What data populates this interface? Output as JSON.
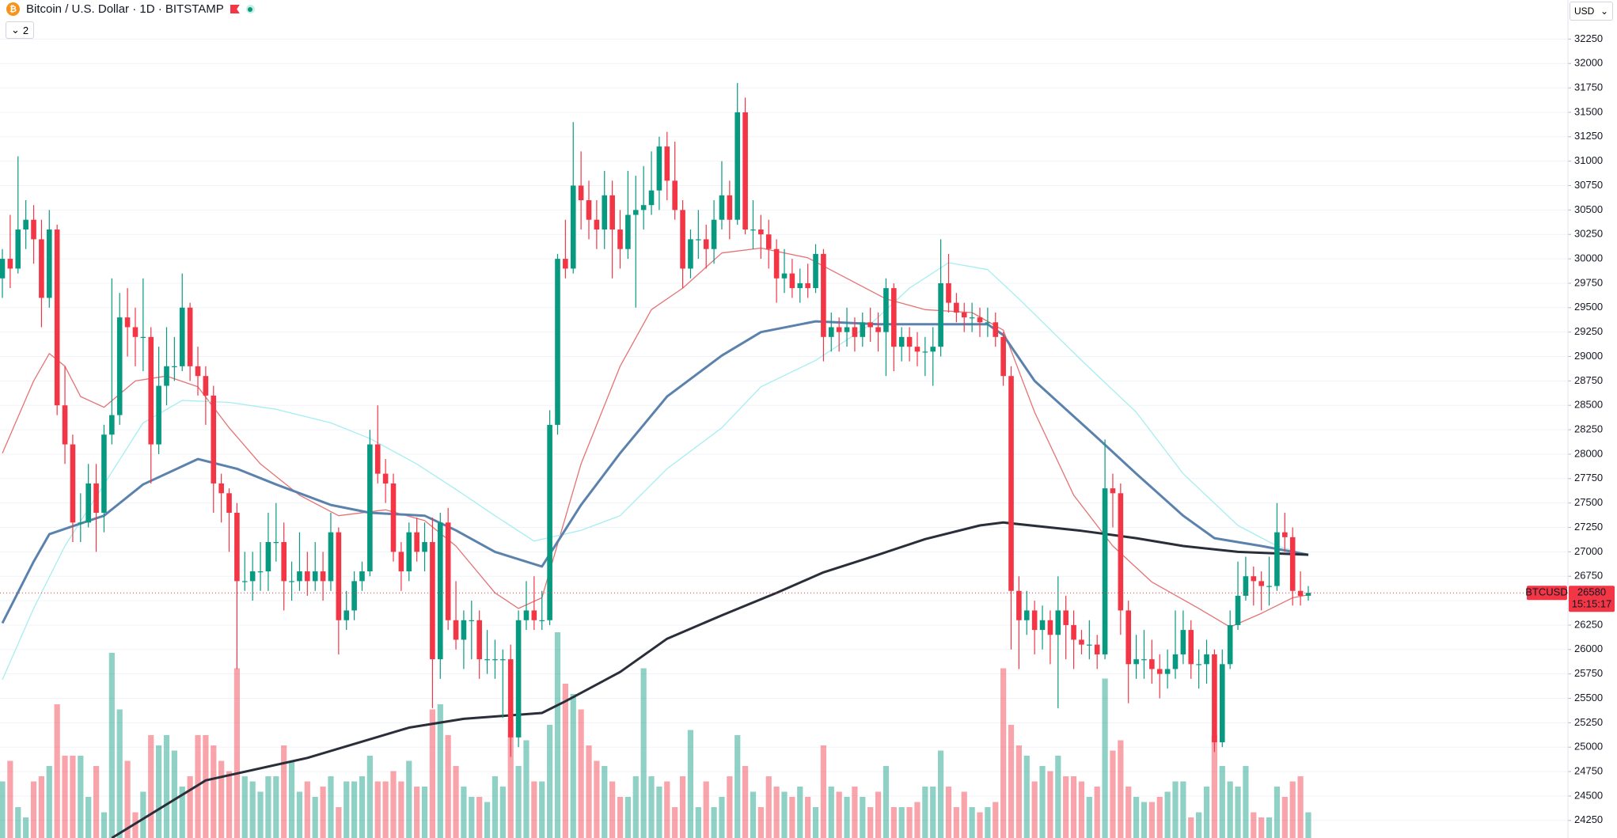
{
  "header": {
    "title": "Bitcoin / U.S. Dollar · 1D · BITSTAMP",
    "indicator_count": 2,
    "currency": "USD"
  },
  "chart_data": {
    "type": "candlestick",
    "up_color": "#089981",
    "down_color": "#f23645",
    "grid": true,
    "ylim": [
      24070,
      32650
    ],
    "yticks": [
      24250,
      24500,
      24750,
      25000,
      25250,
      25500,
      25750,
      26000,
      26250,
      26500,
      26750,
      27000,
      27250,
      27500,
      27750,
      28000,
      28250,
      28500,
      28750,
      29000,
      29250,
      29500,
      29750,
      30000,
      30250,
      30500,
      30750,
      31000,
      31250,
      31500,
      31750,
      32000,
      32250
    ],
    "candles": [
      [
        29800,
        30100,
        29600,
        30000
      ],
      [
        30000,
        30450,
        29700,
        29900
      ],
      [
        29900,
        31050,
        29850,
        30300
      ],
      [
        30300,
        30600,
        30100,
        30400
      ],
      [
        30400,
        30550,
        29950,
        30200
      ],
      [
        30200,
        30400,
        29300,
        29600
      ],
      [
        29600,
        30500,
        29500,
        30300
      ],
      [
        30300,
        30350,
        28400,
        28500
      ],
      [
        28500,
        28900,
        27900,
        28100
      ],
      [
        28100,
        28200,
        27100,
        27300
      ],
      [
        27300,
        27600,
        27100,
        27300
      ],
      [
        27300,
        27900,
        27250,
        27700
      ],
      [
        27700,
        27900,
        27000,
        27400
      ],
      [
        27400,
        28300,
        27200,
        28200
      ],
      [
        28200,
        29800,
        28100,
        28400
      ],
      [
        28400,
        29650,
        28300,
        29400
      ],
      [
        29400,
        29700,
        29000,
        29300
      ],
      [
        29300,
        29500,
        28900,
        29200
      ],
      [
        29200,
        29800,
        28850,
        29200
      ],
      [
        29200,
        29300,
        27700,
        28100
      ],
      [
        28100,
        29100,
        28000,
        28700
      ],
      [
        28700,
        29300,
        28500,
        28900
      ],
      [
        28900,
        29200,
        28750,
        28900
      ],
      [
        28900,
        29850,
        28850,
        29500
      ],
      [
        29500,
        29550,
        28750,
        28900
      ],
      [
        28900,
        29100,
        28600,
        28800
      ],
      [
        28800,
        28900,
        28300,
        28600
      ],
      [
        28600,
        28700,
        27400,
        27700
      ],
      [
        27700,
        27800,
        27300,
        27600
      ],
      [
        27600,
        27650,
        27000,
        27400
      ],
      [
        27400,
        27500,
        25800,
        26700
      ],
      [
        26700,
        27000,
        26600,
        26700
      ],
      [
        26700,
        27000,
        26500,
        26800
      ],
      [
        26800,
        27100,
        26600,
        26800
      ],
      [
        26800,
        27400,
        26600,
        27100
      ],
      [
        27100,
        27500,
        26900,
        27100
      ],
      [
        27100,
        27300,
        26400,
        26700
      ],
      [
        26700,
        26900,
        26500,
        26700
      ],
      [
        26700,
        27200,
        26600,
        26800
      ],
      [
        26800,
        27000,
        26550,
        26700
      ],
      [
        26700,
        27100,
        26600,
        26800
      ],
      [
        26800,
        27000,
        26500,
        26700
      ],
      [
        26700,
        27400,
        26600,
        27200
      ],
      [
        27200,
        27250,
        25950,
        26300
      ],
      [
        26300,
        26600,
        26200,
        26400
      ],
      [
        26400,
        26800,
        26300,
        26700
      ],
      [
        26700,
        26900,
        26600,
        26800
      ],
      [
        26800,
        28250,
        26750,
        28100
      ],
      [
        28100,
        28500,
        27700,
        27800
      ],
      [
        27800,
        27950,
        27500,
        27700
      ],
      [
        27700,
        27800,
        26900,
        27000
      ],
      [
        27000,
        27100,
        26600,
        26800
      ],
      [
        26800,
        27300,
        26700,
        27200
      ],
      [
        27200,
        27350,
        26900,
        27000
      ],
      [
        27000,
        27300,
        26800,
        27100
      ],
      [
        27100,
        27350,
        25400,
        25900
      ],
      [
        25900,
        27400,
        25700,
        27300
      ],
      [
        27300,
        27450,
        26200,
        26300
      ],
      [
        26300,
        26700,
        26000,
        26100
      ],
      [
        26100,
        26400,
        25800,
        26300
      ],
      [
        26300,
        26500,
        25900,
        26300
      ],
      [
        26300,
        26400,
        25700,
        25900
      ],
      [
        25900,
        26200,
        25750,
        25900
      ],
      [
        25900,
        26100,
        25700,
        25900
      ],
      [
        25900,
        26000,
        25300,
        25900
      ],
      [
        25900,
        26050,
        24900,
        25100
      ],
      [
        25100,
        26400,
        25000,
        26300
      ],
      [
        26300,
        26700,
        26200,
        26400
      ],
      [
        26400,
        26750,
        26200,
        26300
      ],
      [
        26300,
        26600,
        26200,
        26300
      ],
      [
        26300,
        28450,
        26250,
        28300
      ],
      [
        28300,
        30050,
        28200,
        30000
      ],
      [
        30000,
        30400,
        29800,
        29900
      ],
      [
        29900,
        31400,
        29850,
        30750
      ],
      [
        30750,
        31100,
        30300,
        30600
      ],
      [
        30600,
        30800,
        30200,
        30400
      ],
      [
        30400,
        30600,
        30100,
        30300
      ],
      [
        30300,
        30900,
        30100,
        30650
      ],
      [
        30650,
        30800,
        29800,
        30300
      ],
      [
        30300,
        30500,
        29900,
        30100
      ],
      [
        30100,
        30900,
        30000,
        30450
      ],
      [
        30450,
        30850,
        29500,
        30500
      ],
      [
        30500,
        30950,
        30300,
        30550
      ],
      [
        30550,
        31100,
        30450,
        30700
      ],
      [
        30700,
        31250,
        30500,
        31150
      ],
      [
        31150,
        31300,
        30600,
        30800
      ],
      [
        30800,
        31200,
        30400,
        30500
      ],
      [
        30500,
        30600,
        29700,
        29900
      ],
      [
        29900,
        30300,
        29800,
        30200
      ],
      [
        30200,
        30500,
        30000,
        30200
      ],
      [
        30200,
        30350,
        29900,
        30100
      ],
      [
        30100,
        30600,
        29950,
        30400
      ],
      [
        30400,
        31000,
        30300,
        30650
      ],
      [
        30650,
        30800,
        30200,
        30400
      ],
      [
        30400,
        31800,
        30350,
        31500
      ],
      [
        31500,
        31650,
        30250,
        30300
      ],
      [
        30300,
        30600,
        30100,
        30300
      ],
      [
        30300,
        30450,
        30000,
        30250
      ],
      [
        30250,
        30400,
        29900,
        30100
      ],
      [
        30100,
        30200,
        29550,
        29800
      ],
      [
        29800,
        30100,
        29650,
        29850
      ],
      [
        29850,
        30000,
        29600,
        29700
      ],
      [
        29700,
        29900,
        29550,
        29750
      ],
      [
        29750,
        29950,
        29600,
        29700
      ],
      [
        29700,
        30150,
        29650,
        30050
      ],
      [
        30050,
        30100,
        28950,
        29200
      ],
      [
        29200,
        29450,
        29050,
        29300
      ],
      [
        29300,
        29400,
        29050,
        29250
      ],
      [
        29250,
        29500,
        29100,
        29300
      ],
      [
        29300,
        29400,
        29050,
        29200
      ],
      [
        29200,
        29450,
        29100,
        29350
      ],
      [
        29350,
        29500,
        29150,
        29300
      ],
      [
        29300,
        29450,
        29050,
        29250
      ],
      [
        29250,
        29800,
        28800,
        29700
      ],
      [
        29700,
        29750,
        28850,
        29100
      ],
      [
        29100,
        29300,
        28950,
        29200
      ],
      [
        29200,
        29300,
        28950,
        29100
      ],
      [
        29100,
        29250,
        28900,
        29050
      ],
      [
        29050,
        29200,
        28800,
        29050
      ],
      [
        29050,
        29300,
        28700,
        29100
      ],
      [
        29100,
        30200,
        29000,
        29750
      ],
      [
        29750,
        30050,
        29450,
        29550
      ],
      [
        29550,
        29650,
        29350,
        29450
      ],
      [
        29450,
        29550,
        29250,
        29400
      ],
      [
        29400,
        29550,
        29250,
        29400
      ],
      [
        29400,
        29500,
        29200,
        29350
      ],
      [
        29350,
        29500,
        29200,
        29350
      ],
      [
        29350,
        29450,
        29100,
        29200
      ],
      [
        29200,
        29250,
        28700,
        28800
      ],
      [
        28800,
        28900,
        26000,
        26600
      ],
      [
        26600,
        26750,
        25800,
        26300
      ],
      [
        26300,
        26600,
        26150,
        26400
      ],
      [
        26400,
        26500,
        25950,
        26200
      ],
      [
        26200,
        26450,
        26000,
        26300
      ],
      [
        26300,
        26400,
        25850,
        26150
      ],
      [
        26150,
        26750,
        25400,
        26400
      ],
      [
        26400,
        26550,
        25900,
        26250
      ],
      [
        26250,
        26400,
        25800,
        26100
      ],
      [
        26100,
        26200,
        25950,
        26050
      ],
      [
        26050,
        26300,
        25900,
        26050
      ],
      [
        26050,
        26150,
        25800,
        25950
      ],
      [
        25950,
        28150,
        25900,
        27650
      ],
      [
        27650,
        27800,
        27250,
        27600
      ],
      [
        27600,
        27700,
        26150,
        26400
      ],
      [
        26400,
        26500,
        25450,
        25850
      ],
      [
        25850,
        26150,
        25700,
        25900
      ],
      [
        25900,
        26200,
        25700,
        25900
      ],
      [
        25900,
        26100,
        25650,
        25800
      ],
      [
        25800,
        25950,
        25500,
        25750
      ],
      [
        25750,
        26000,
        25600,
        25800
      ],
      [
        25800,
        26400,
        25700,
        25950
      ],
      [
        25950,
        26400,
        25850,
        26200
      ],
      [
        26200,
        26300,
        25700,
        25850
      ],
      [
        25850,
        26000,
        25600,
        25850
      ],
      [
        25850,
        26100,
        25650,
        25950
      ],
      [
        25950,
        26000,
        24950,
        25050
      ],
      [
        25050,
        26000,
        25000,
        25850
      ],
      [
        25850,
        26400,
        25800,
        26250
      ],
      [
        26250,
        26900,
        26200,
        26550
      ],
      [
        26550,
        26950,
        26500,
        26750
      ],
      [
        26750,
        26850,
        26450,
        26700
      ],
      [
        26700,
        26800,
        26400,
        26650
      ],
      [
        26650,
        26950,
        26450,
        26650
      ],
      [
        26650,
        27500,
        26600,
        27200
      ],
      [
        27200,
        27400,
        27000,
        27150
      ],
      [
        27150,
        27250,
        26450,
        26600
      ],
      [
        26600,
        26800,
        26450,
        26550
      ],
      [
        26550,
        26650,
        26500,
        26580
      ]
    ],
    "volumes": [
      55,
      75,
      30,
      20,
      55,
      60,
      70,
      130,
      80,
      80,
      80,
      40,
      70,
      25,
      180,
      125,
      75,
      25,
      45,
      100,
      90,
      100,
      85,
      50,
      60,
      100,
      100,
      90,
      75,
      65,
      165,
      60,
      55,
      45,
      60,
      60,
      90,
      75,
      45,
      55,
      40,
      50,
      60,
      30,
      55,
      55,
      60,
      80,
      55,
      55,
      65,
      55,
      75,
      50,
      50,
      125,
      130,
      100,
      70,
      50,
      40,
      40,
      35,
      60,
      50,
      115,
      70,
      95,
      55,
      55,
      110,
      200,
      150,
      140,
      125,
      90,
      75,
      70,
      55,
      40,
      40,
      60,
      165,
      60,
      50,
      55,
      30,
      60,
      105,
      30,
      55,
      30,
      40,
      60,
      100,
      70,
      45,
      30,
      60,
      50,
      45,
      40,
      50,
      40,
      30,
      90,
      50,
      45,
      40,
      50,
      40,
      30,
      45,
      70,
      30,
      30,
      30,
      35,
      50,
      50,
      85,
      50,
      30,
      45,
      30,
      25,
      30,
      35,
      165,
      110,
      90,
      80,
      55,
      70,
      65,
      80,
      60,
      60,
      55,
      40,
      50,
      155,
      85,
      95,
      50,
      40,
      35,
      35,
      40,
      45,
      55,
      55,
      20,
      25,
      50,
      100,
      70,
      55,
      50,
      70,
      25,
      20,
      20,
      50,
      40,
      55,
      60,
      25
    ],
    "lines": [
      {
        "color": "#e57373",
        "weight": "thin",
        "x": [
          0,
          4,
          6,
          8,
          10,
          13,
          17,
          21,
          25,
          29,
          33,
          38,
          43,
          49,
          54,
          58,
          63,
          66,
          69,
          74,
          79,
          83,
          87,
          92,
          97,
          103,
          108,
          113,
          118,
          124,
          128,
          132,
          137,
          142,
          147,
          153,
          157,
          161,
          165,
          167
        ],
        "values": [
          28010,
          28750,
          29030,
          28900,
          28590,
          28480,
          28750,
          28800,
          28690,
          28270,
          27900,
          27580,
          27370,
          27430,
          27320,
          27060,
          26580,
          26420,
          26530,
          27900,
          28900,
          29480,
          29700,
          30060,
          30110,
          30010,
          29800,
          29590,
          29480,
          29450,
          29270,
          28430,
          27580,
          27060,
          26690,
          26420,
          26230,
          26370,
          26530,
          26560
        ]
      },
      {
        "color": "#a5eef0",
        "weight": "thin",
        "x": [
          0,
          4,
          8,
          13,
          18,
          23,
          29,
          35,
          42,
          47,
          53,
          58,
          63,
          68,
          74,
          79,
          85,
          92,
          97,
          104,
          111,
          116,
          121,
          126,
          130,
          138,
          145,
          151,
          158,
          163,
          167
        ],
        "values": [
          25690,
          26420,
          27060,
          27690,
          28320,
          28550,
          28530,
          28460,
          28320,
          28160,
          27900,
          27640,
          27370,
          27110,
          27220,
          27370,
          27850,
          28270,
          28690,
          28960,
          29330,
          29700,
          29960,
          29890,
          29590,
          28960,
          28430,
          27800,
          27270,
          27060,
          26970
        ]
      },
      {
        "color": "#5b82ad",
        "weight": "thick",
        "x": [
          0,
          4,
          6,
          10,
          13,
          18,
          25,
          30,
          35,
          42,
          47,
          54,
          58,
          63,
          69,
          74,
          79,
          85,
          92,
          97,
          104,
          112,
          120,
          126,
          128,
          132,
          140,
          145,
          151,
          155,
          161,
          167
        ],
        "values": [
          26270,
          26900,
          27180,
          27290,
          27370,
          27690,
          27950,
          27850,
          27690,
          27480,
          27400,
          27370,
          27220,
          27000,
          26850,
          27480,
          28010,
          28590,
          29010,
          29250,
          29360,
          29330,
          29330,
          29330,
          29220,
          28750,
          28170,
          27800,
          27370,
          27140,
          27060,
          26970
        ]
      },
      {
        "color": "#2a2e39",
        "weight": "thick",
        "x": [
          14,
          26,
          39,
          52,
          59,
          69,
          72,
          79,
          85,
          92,
          99,
          105,
          112,
          118,
          125,
          128,
          138,
          145,
          151,
          158,
          167
        ],
        "values": [
          24070,
          24660,
          24890,
          25200,
          25290,
          25350,
          25470,
          25770,
          26110,
          26350,
          26580,
          26790,
          26970,
          27130,
          27270,
          27300,
          27215,
          27140,
          27060,
          27000,
          26970
        ]
      }
    ],
    "last_price": {
      "label": "BTCUSD",
      "value": 26580,
      "countdown": "15:15:17"
    }
  }
}
